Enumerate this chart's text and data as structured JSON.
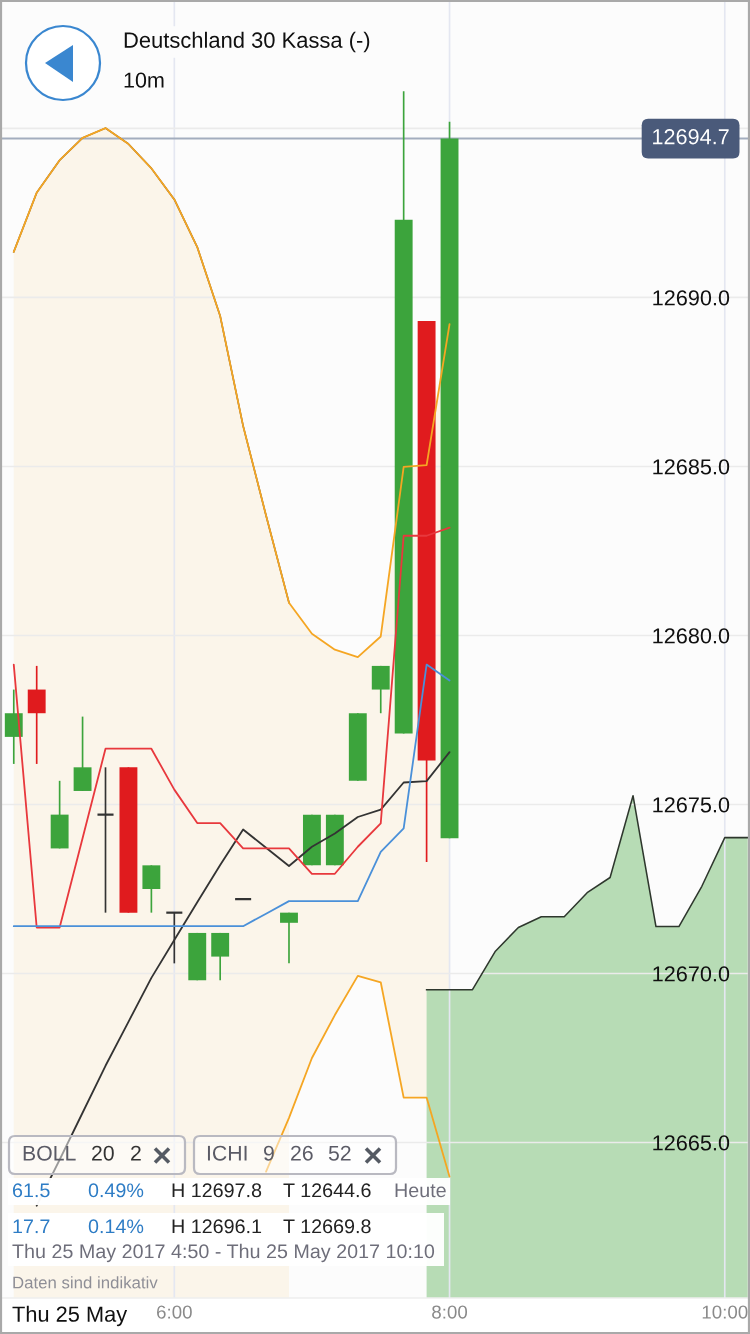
{
  "chart_data": {
    "type": "candlestick",
    "title": "Deutschland 30 Kassa (-)",
    "subtitle": "10m",
    "x": [
      "2017-05-25T04:50",
      "2017-05-25T05:00",
      "2017-05-25T05:10",
      "2017-05-25T05:20",
      "2017-05-25T05:30",
      "2017-05-25T05:40",
      "2017-05-25T05:50",
      "2017-05-25T06:00",
      "2017-05-25T06:10",
      "2017-05-25T06:20",
      "2017-05-25T06:30",
      "2017-05-25T06:40",
      "2017-05-25T06:50",
      "2017-05-25T07:00",
      "2017-05-25T07:10",
      "2017-05-25T07:20",
      "2017-05-25T07:30",
      "2017-05-25T07:40",
      "2017-05-25T07:50",
      "2017-05-25T08:00"
    ],
    "ohlc": [
      [
        12677.0,
        12678.4,
        12676.2,
        12677.7
      ],
      [
        12678.4,
        12679.1,
        12676.2,
        12677.7
      ],
      [
        12673.7,
        12675.7,
        12673.7,
        12674.7
      ],
      [
        12675.4,
        12677.6,
        12675.4,
        12676.1
      ],
      [
        12674.7,
        12676.1,
        12671.8,
        12674.7
      ],
      [
        12676.1,
        12676.1,
        12671.8,
        12671.8
      ],
      [
        12672.5,
        12673.2,
        12671.8,
        12673.2
      ],
      [
        12671.8,
        12671.8,
        12670.3,
        12671.8
      ],
      [
        12669.8,
        12671.2,
        12669.8,
        12671.2
      ],
      [
        12670.5,
        12671.2,
        12669.8,
        12671.2
      ],
      [
        12672.2,
        12672.2,
        12672.2,
        12672.2
      ],
      null,
      [
        12671.5,
        12671.8,
        12670.3,
        12671.8
      ],
      [
        12673.2,
        12674.7,
        12673.2,
        12674.7
      ],
      [
        12673.2,
        12674.7,
        12673.2,
        12674.7
      ],
      [
        12675.7,
        12677.7,
        12675.7,
        12677.7
      ],
      [
        12678.4,
        12679.1,
        12677.7,
        12679.1
      ],
      [
        12677.1,
        12696.1,
        12677.1,
        12692.3
      ],
      [
        12689.3,
        12689.3,
        12673.3,
        12676.3
      ],
      [
        12674.0,
        12695.2,
        12674.0,
        12694.7
      ]
    ],
    "colors": [
      "#3ca43c",
      "#e01b1e",
      "#3ca43c",
      "#3ca43c",
      "#333333",
      "#e01b1e",
      "#3ca43c",
      "#333333",
      "#3ca43c",
      "#3ca43c",
      "#333333",
      null,
      "#3ca43c",
      "#3ca43c",
      "#3ca43c",
      "#3ca43c",
      "#3ca43c",
      "#3ca43c",
      "#e01b1e",
      "#3ca43c"
    ],
    "series": [
      {
        "type": "area",
        "color": "#fbf5ea",
        "x": [
          "2017-05-25T04:50",
          "2017-05-25T05:00",
          "2017-05-25T05:10",
          "2017-05-25T05:20",
          "2017-05-25T05:30",
          "2017-05-25T05:40",
          "2017-05-25T05:50",
          "2017-05-25T06:00",
          "2017-05-25T06:10",
          "2017-05-25T06:20",
          "2017-05-25T06:30",
          "2017-05-25T06:40",
          "2017-05-25T06:50"
        ],
        "values": [
          12691.35,
          12693.1,
          12694.06,
          12694.72,
          12695.01,
          12694.54,
          12693.82,
          12692.9,
          12691.49,
          12689.45,
          12686.2,
          12683.55,
          12680.97
        ]
      },
      {
        "type": "area",
        "color": "#b7dcb5",
        "x": [
          "2017-05-25T07:50",
          "2017-05-25T08:00",
          "2017-05-25T08:10",
          "2017-05-25T08:20",
          "2017-05-25T08:30",
          "2017-05-25T08:40",
          "2017-05-25T08:50",
          "2017-05-25T09:00",
          "2017-05-25T09:10",
          "2017-05-25T09:20",
          "2017-05-25T09:30",
          "2017-05-25T09:40",
          "2017-05-25T09:50",
          "2017-05-25T10:00",
          "2017-05-25T10:10"
        ],
        "values": [
          12669.52,
          12669.52,
          12669.52,
          12670.66,
          12671.36,
          12671.68,
          12671.68,
          12672.39,
          12672.84,
          12675.26,
          12671.39,
          12671.39,
          12672.58,
          12674.02,
          12674.02
        ]
      },
      {
        "type": "line",
        "color": "#f5a623",
        "values": [
          12691.35,
          12693.1,
          12694.06,
          12694.72,
          12695.01,
          12694.54,
          12693.82,
          12692.9,
          12691.49,
          12689.45,
          12686.2,
          12683.55,
          12680.97,
          12680.05,
          12679.58,
          12679.36,
          12679.97,
          12684.99,
          12685.04,
          12689.21
        ]
      },
      {
        "type": "line",
        "color": "#f5a623",
        "values": [
          null,
          null,
          null,
          null,
          null,
          null,
          null,
          null,
          null,
          null,
          null,
          12664.14,
          12665.73,
          12667.5,
          12668.77,
          12669.93,
          12669.74,
          12666.33,
          12666.33,
          12663.99
        ]
      },
      {
        "type": "line",
        "color": "#333333",
        "values": [
          null,
          12663.13,
          12664.49,
          12665.88,
          12667.27,
          12668.57,
          12669.87,
          12670.99,
          12672.11,
          12673.21,
          12674.26,
          12673.72,
          12673.18,
          12673.75,
          12674.14,
          12674.63,
          12674.85,
          12675.65,
          12675.69,
          12676.55
        ],
        "lower": [
          null,
          null,
          null,
          null,
          null,
          null,
          null,
          null,
          null,
          null,
          null,
          null,
          12665.73,
          12667.5,
          12668.77,
          12669.93,
          12669.74,
          12666.33,
          12666.33,
          12663.99
        ],
        "upper": [
          null,
          null,
          null,
          null,
          null,
          null,
          null,
          null,
          null,
          null,
          null,
          null,
          12680.97,
          12680.05,
          12679.58,
          12679.36,
          12679.97,
          12684.99,
          12685.04,
          12689.21
        ]
      },
      {
        "type": "line",
        "color": "#e8383d",
        "values": [
          12679.14,
          12671.36,
          12671.36,
          12674.0,
          12676.65,
          12676.65,
          12676.65,
          12675.44,
          12674.45,
          12674.45,
          12673.7,
          12673.7,
          12673.7,
          12672.95,
          12672.95,
          12673.75,
          12674.44,
          12682.95,
          12682.95,
          12683.19
        ]
      },
      {
        "type": "line",
        "color": "#4a90d9",
        "values": [
          12671.4,
          12671.4,
          12671.4,
          12671.4,
          12671.4,
          12671.4,
          12671.4,
          12671.4,
          12671.4,
          12671.4,
          12671.4,
          12671.77,
          12672.14,
          12672.14,
          12672.14,
          12672.14,
          12673.6,
          12674.29,
          12679.14,
          12678.67
        ]
      }
    ],
    "xlim": [
      "2017-05-25T04:44",
      "2017-05-25T10:11"
    ],
    "xticks": [
      {
        "value": "2017-05-25T06:00",
        "label": "6:00"
      },
      {
        "value": "2017-05-25T08:00",
        "label": "8:00"
      },
      {
        "value": "2017-05-25T10:00",
        "label": "10:00"
      }
    ],
    "ylim": [
      12660.4,
      12698.8
    ],
    "yticks": [
      {
        "value": 12665,
        "label": "12665.0"
      },
      {
        "value": 12670,
        "label": "12670.0"
      },
      {
        "value": 12675,
        "label": "12675.0"
      },
      {
        "value": 12680,
        "label": "12680.0"
      },
      {
        "value": 12685,
        "label": "12685.0"
      },
      {
        "value": 12690,
        "label": "12690.0"
      },
      {
        "value": 12695,
        "label": null
      }
    ],
    "ref_lines": [
      {
        "axis": "y",
        "value": 12694.7,
        "label": "12694.7",
        "color": "#a3adbe"
      }
    ],
    "grid": true,
    "annotations": [
      "BOLL",
      "20",
      "2",
      "ICHI",
      "9",
      "26",
      "52",
      "61.5",
      "0.49%",
      "H 12697.8",
      "T 12644.6",
      "Heute",
      "17.7",
      "0.14%",
      "H 12696.1",
      "T 12669.8",
      "Thu 25 May 2017 4:50 - Thu 25 May 2017 10:10",
      "Daten sind indikativ",
      "Thu 25 May"
    ]
  }
}
